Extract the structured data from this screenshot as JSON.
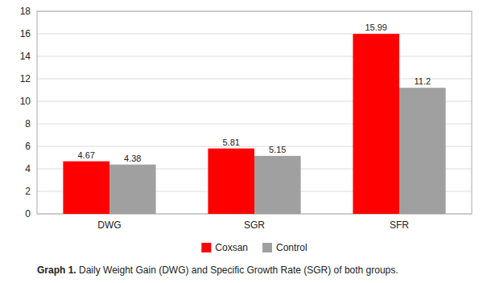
{
  "chart_data": {
    "type": "bar",
    "categories": [
      "DWG",
      "SGR",
      "SFR"
    ],
    "series": [
      {
        "name": "Coxsan",
        "color": "#FF0000",
        "values": [
          4.67,
          5.81,
          15.99
        ]
      },
      {
        "name": "Control",
        "color": "#A0A0A0",
        "values": [
          4.38,
          5.15,
          11.2
        ]
      }
    ],
    "ylim": [
      0,
      18
    ],
    "yticks": [
      0,
      2,
      4,
      6,
      8,
      10,
      12,
      14,
      16,
      18
    ],
    "grid": true,
    "data_labels": true,
    "legend": "bottom",
    "caption": {
      "bold": "Graph 1.",
      "text": " Daily Weight Gain (DWG) and Specific Growth Rate (SGR) of both groups."
    }
  }
}
